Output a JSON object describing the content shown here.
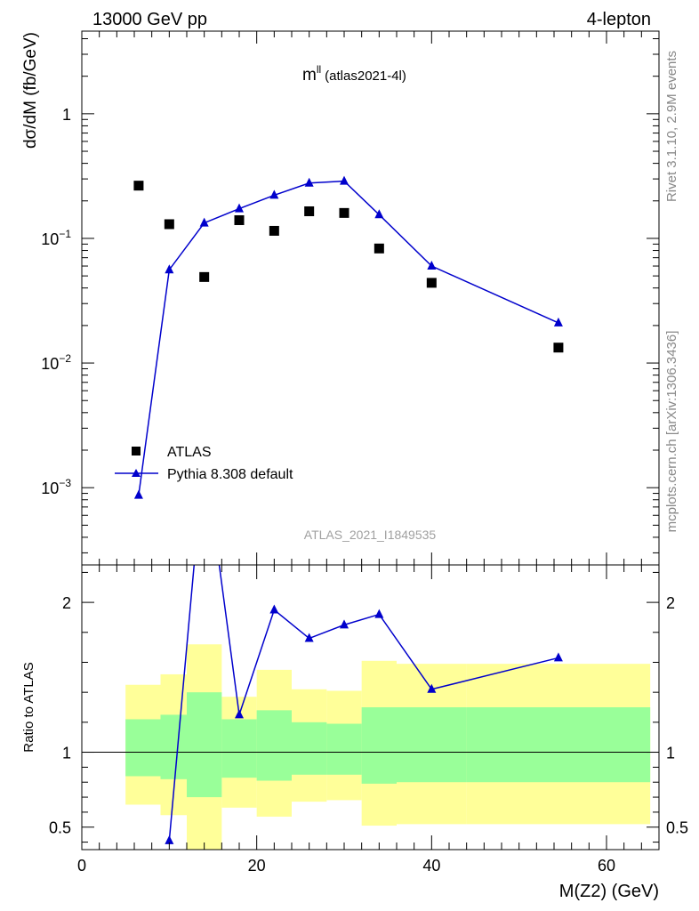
{
  "header": {
    "energy_label": "13000 GeV pp",
    "process_label": "4-lepton"
  },
  "side_labels": {
    "version": "Rivet 3.1.10,  2.9M events",
    "source": "mcplots.cern.ch [arXiv:1306.3436]"
  },
  "chart_data": [
    {
      "type": "scatter",
      "panel": "main",
      "title_main": "m",
      "title_sup": "ll",
      "title_paren": "(atlas2021-4l)",
      "watermark": "ATLAS_2021_I1849535",
      "ylabel": "dσ/dM (fb/GeV)",
      "yscale": "log",
      "xlim": [
        0,
        66
      ],
      "ylim": [
        0.00024,
        4.6
      ],
      "y_ticks": [
        {
          "value": 0.001,
          "base": "10",
          "exp": "−3"
        },
        {
          "value": 0.01,
          "base": "10",
          "exp": "−2"
        },
        {
          "value": 0.1,
          "base": "10",
          "exp": "−1"
        },
        {
          "value": 1,
          "base": "1",
          "exp": ""
        }
      ],
      "legend_position": "bottom-left",
      "series": [
        {
          "name": "ATLAS",
          "marker": "square",
          "color": "#000000",
          "x": [
            6.5,
            10,
            14,
            18,
            22,
            26,
            30,
            34,
            40,
            54.5
          ],
          "y": [
            0.265,
            0.13,
            0.049,
            0.14,
            0.115,
            0.165,
            0.16,
            0.083,
            0.044,
            0.0133
          ]
        },
        {
          "name": "Pythia 8.308 default",
          "marker": "triangle",
          "line": true,
          "color": "#0000cc",
          "x": [
            6.5,
            10,
            14,
            18,
            22,
            26,
            30,
            34,
            40,
            54.5
          ],
          "y": [
            0.00087,
            0.056,
            0.133,
            0.173,
            0.222,
            0.278,
            0.288,
            0.155,
            0.06,
            0.021
          ]
        }
      ]
    },
    {
      "type": "line",
      "panel": "ratio",
      "ylabel": "Ratio to ATLAS",
      "xlabel": "M(Z2) (GeV)",
      "xlim": [
        0,
        66
      ],
      "ylim": [
        0.35,
        2.25
      ],
      "x_ticks": [
        0,
        20,
        40,
        60
      ],
      "y_ticks": [
        0.5,
        1,
        2
      ],
      "reference_line": 1,
      "bands": {
        "bins": [
          [
            5,
            9
          ],
          [
            9,
            12
          ],
          [
            12,
            16
          ],
          [
            16,
            20
          ],
          [
            20,
            24
          ],
          [
            24,
            28
          ],
          [
            28,
            32
          ],
          [
            32,
            36
          ],
          [
            36,
            44
          ],
          [
            44,
            65
          ]
        ],
        "inner_low": [
          0.84,
          0.82,
          0.7,
          0.83,
          0.81,
          0.85,
          0.85,
          0.79,
          0.8,
          0.8
        ],
        "inner_high": [
          1.22,
          1.25,
          1.4,
          1.22,
          1.28,
          1.2,
          1.19,
          1.3,
          1.3,
          1.3
        ],
        "outer_low": [
          0.65,
          0.58,
          0.35,
          0.63,
          0.57,
          0.67,
          0.68,
          0.51,
          0.52,
          0.52
        ],
        "outer_high": [
          1.45,
          1.52,
          1.72,
          1.37,
          1.55,
          1.42,
          1.41,
          1.61,
          1.59,
          1.59
        ],
        "inner_color": "#99ff99",
        "outer_color": "#ffff99"
      },
      "series": [
        {
          "name": "Pythia 8.308 default",
          "marker": "triangle",
          "color": "#0000cc",
          "x": [
            10,
            18,
            22,
            26,
            30,
            34,
            40,
            54.5
          ],
          "y": [
            0.41,
            1.25,
            1.95,
            1.76,
            1.85,
            1.92,
            1.42,
            1.63
          ],
          "off_scale_points": [
            {
              "x": 14,
              "y": 3.0
            }
          ],
          "below_range_x": 6.5
        }
      ]
    }
  ]
}
